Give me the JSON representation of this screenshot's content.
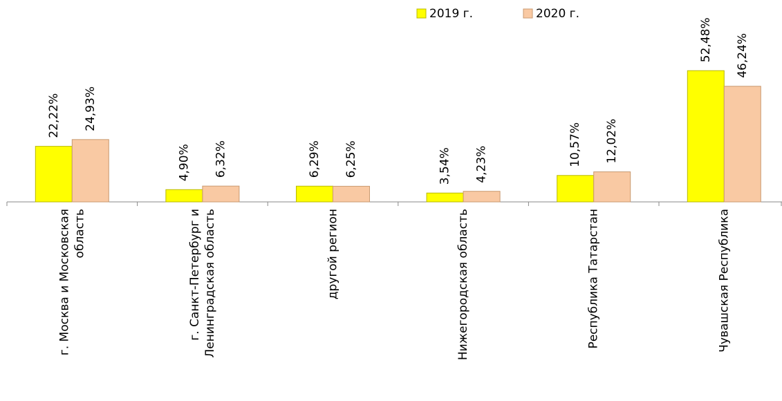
{
  "chart_data": {
    "type": "bar",
    "categories": [
      [
        "г. Москва и Московская",
        "область"
      ],
      [
        "г. Санкт-Петербург и",
        "Ленинградская область"
      ],
      [
        "другой регион"
      ],
      [
        "Нижегородская область"
      ],
      [
        "Республика Татарстан"
      ],
      [
        "Чувашская Республика"
      ]
    ],
    "series": [
      {
        "name": "2019 г.",
        "color": "#ffff00",
        "values": [
          22.22,
          4.9,
          6.29,
          3.54,
          10.57,
          52.48
        ],
        "value_labels": [
          "22,22%",
          "4,90%",
          "6,29%",
          "3,54%",
          "10,57%",
          "52,48%"
        ]
      },
      {
        "name": "2020 г.",
        "color": "#f9c9a3",
        "values": [
          24.93,
          6.32,
          6.25,
          4.23,
          12.02,
          46.24
        ],
        "value_labels": [
          "24,93%",
          "6,32%",
          "6,25%",
          "4,23%",
          "12,02%",
          "46,24%"
        ]
      }
    ],
    "ylim": [
      0,
      60
    ],
    "legend": "top"
  }
}
